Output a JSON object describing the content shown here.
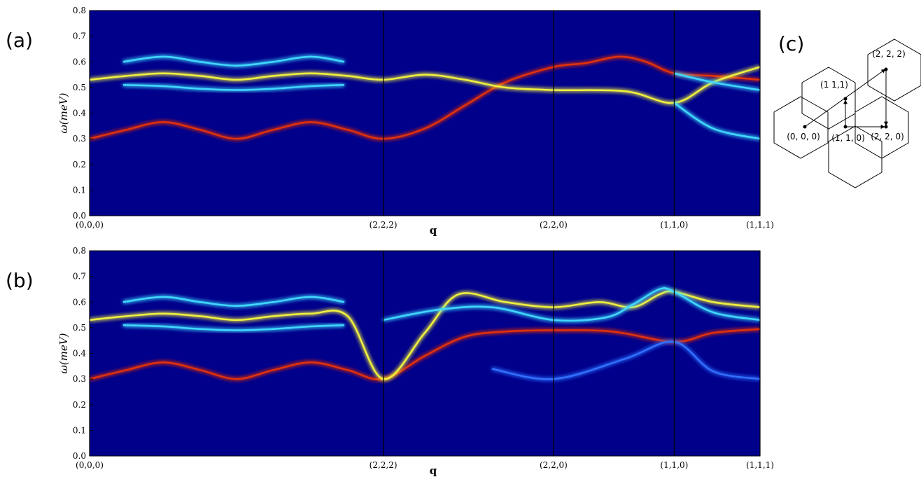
{
  "chart_data": [
    {
      "type": "line",
      "panel_label": "(a)",
      "y_label": "ω(meV)",
      "x_label": "q",
      "background": "#00008b",
      "xlim": [
        0,
        1
      ],
      "xticks": [
        {
          "value": 0,
          "label": "(0,0,0)"
        },
        {
          "value": 0.438,
          "label": "(2,2,2)"
        },
        {
          "value": 0.692,
          "label": "(2,2,0)"
        },
        {
          "value": 0.872,
          "label": "(1,1,0)"
        },
        {
          "value": 1,
          "label": "(1,1,1)"
        }
      ],
      "ylim": [
        0,
        0.8
      ],
      "yticks": [
        {
          "value": 0,
          "label": "0.0"
        },
        {
          "value": 0.1,
          "label": "0.1"
        },
        {
          "value": 0.2,
          "label": "0.2"
        },
        {
          "value": 0.3,
          "label": "0.3"
        },
        {
          "value": 0.4,
          "label": "0.4"
        },
        {
          "value": 0.5,
          "label": "0.5"
        },
        {
          "value": 0.6,
          "label": "0.6"
        },
        {
          "value": 0.7,
          "label": "0.7"
        },
        {
          "value": 0.8,
          "label": "0.8"
        }
      ],
      "series": [
        {
          "color": "#e03010",
          "x": [
            0,
            0.055,
            0.11,
            0.165,
            0.219,
            0.274,
            0.33,
            0.385,
            0.438,
            0.5,
            0.56,
            0.62,
            0.692,
            0.74,
            0.79,
            0.83,
            0.872,
            0.93,
            1
          ],
          "values": [
            0.3,
            0.335,
            0.365,
            0.335,
            0.3,
            0.335,
            0.365,
            0.335,
            0.3,
            0.34,
            0.43,
            0.52,
            0.58,
            0.595,
            0.62,
            0.6,
            0.555,
            0.545,
            0.53
          ]
        },
        {
          "color": "#f0f040",
          "x": [
            0,
            0.055,
            0.11,
            0.165,
            0.219,
            0.274,
            0.33,
            0.385,
            0.438,
            0.5,
            0.56,
            0.62,
            0.692,
            0.8,
            0.872,
            0.93,
            1
          ],
          "values": [
            0.53,
            0.545,
            0.555,
            0.545,
            0.53,
            0.545,
            0.555,
            0.545,
            0.53,
            0.55,
            0.53,
            0.5,
            0.49,
            0.485,
            0.44,
            0.52,
            0.58
          ]
        },
        {
          "color": "#40d8ff",
          "x": [
            0.05,
            0.11,
            0.165,
            0.219,
            0.274,
            0.33,
            0.38
          ],
          "values": [
            0.6,
            0.62,
            0.6,
            0.585,
            0.6,
            0.62,
            0.6
          ]
        },
        {
          "color": "#40d8ff",
          "x": [
            0.05,
            0.11,
            0.165,
            0.219,
            0.274,
            0.33,
            0.38
          ],
          "values": [
            0.51,
            0.505,
            0.495,
            0.49,
            0.495,
            0.505,
            0.51
          ]
        },
        {
          "color": "#40d8ff",
          "x": [
            0.872,
            0.93,
            1
          ],
          "values": [
            0.44,
            0.34,
            0.3
          ]
        },
        {
          "color": "#40d8ff",
          "x": [
            0.872,
            0.93,
            1
          ],
          "values": [
            0.555,
            0.52,
            0.49
          ]
        }
      ]
    },
    {
      "type": "line",
      "panel_label": "(b)",
      "y_label": "ω(meV)",
      "x_label": "q",
      "background": "#00008b",
      "xlim": [
        0,
        1
      ],
      "xticks": [
        {
          "value": 0,
          "label": "(0,0,0)"
        },
        {
          "value": 0.438,
          "label": "(2,2,2)"
        },
        {
          "value": 0.692,
          "label": "(2,2,0)"
        },
        {
          "value": 0.872,
          "label": "(1,1,0)"
        },
        {
          "value": 1,
          "label": "(1,1,1)"
        }
      ],
      "ylim": [
        0,
        0.8
      ],
      "yticks": [
        {
          "value": 0,
          "label": "0.0"
        },
        {
          "value": 0.1,
          "label": "0.1"
        },
        {
          "value": 0.2,
          "label": "0.2"
        },
        {
          "value": 0.3,
          "label": "0.3"
        },
        {
          "value": 0.4,
          "label": "0.4"
        },
        {
          "value": 0.5,
          "label": "0.5"
        },
        {
          "value": 0.6,
          "label": "0.6"
        },
        {
          "value": 0.7,
          "label": "0.7"
        },
        {
          "value": 0.8,
          "label": "0.8"
        }
      ],
      "series": [
        {
          "color": "#e03010",
          "x": [
            0,
            0.055,
            0.11,
            0.165,
            0.219,
            0.274,
            0.33,
            0.385,
            0.438,
            0.5,
            0.56,
            0.62,
            0.692,
            0.78,
            0.872,
            0.93,
            1
          ],
          "values": [
            0.3,
            0.335,
            0.365,
            0.335,
            0.3,
            0.335,
            0.365,
            0.335,
            0.3,
            0.39,
            0.465,
            0.485,
            0.49,
            0.485,
            0.445,
            0.48,
            0.495
          ]
        },
        {
          "color": "#f0f040",
          "x": [
            0,
            0.055,
            0.11,
            0.165,
            0.219,
            0.274,
            0.33,
            0.385,
            0.438,
            0.5,
            0.55,
            0.62,
            0.692,
            0.76,
            0.81,
            0.85,
            0.872,
            0.93,
            1
          ],
          "values": [
            0.53,
            0.545,
            0.555,
            0.545,
            0.53,
            0.545,
            0.555,
            0.545,
            0.3,
            0.48,
            0.63,
            0.6,
            0.58,
            0.6,
            0.58,
            0.63,
            0.64,
            0.6,
            0.58
          ]
        },
        {
          "color": "#40d8ff",
          "x": [
            0.438,
            0.52,
            0.6,
            0.692,
            0.77,
            0.81,
            0.85,
            0.872,
            0.93,
            1
          ],
          "values": [
            0.53,
            0.57,
            0.58,
            0.53,
            0.54,
            0.59,
            0.65,
            0.64,
            0.56,
            0.53
          ]
        },
        {
          "color": "#40d8ff",
          "x": [
            0.05,
            0.11,
            0.165,
            0.219,
            0.274,
            0.33,
            0.38
          ],
          "values": [
            0.6,
            0.62,
            0.6,
            0.585,
            0.6,
            0.62,
            0.6
          ]
        },
        {
          "color": "#40d8ff",
          "x": [
            0.05,
            0.11,
            0.165,
            0.219,
            0.274,
            0.33,
            0.38
          ],
          "values": [
            0.51,
            0.505,
            0.495,
            0.49,
            0.495,
            0.505,
            0.51
          ]
        },
        {
          "color": "#3070ff",
          "x": [
            0.6,
            0.692,
            0.8,
            0.872,
            0.93,
            1
          ],
          "values": [
            0.34,
            0.3,
            0.38,
            0.445,
            0.33,
            0.3
          ]
        }
      ]
    }
  ],
  "diagram": {
    "label": "(c)",
    "points": [
      {
        "label": "(2, 2, 2)"
      },
      {
        "label": "(1 1,1)"
      },
      {
        "label": "(0, 0, 0)"
      },
      {
        "label": "(1, 1, 0)"
      },
      {
        "label": "(2, 2, 0)"
      }
    ]
  }
}
